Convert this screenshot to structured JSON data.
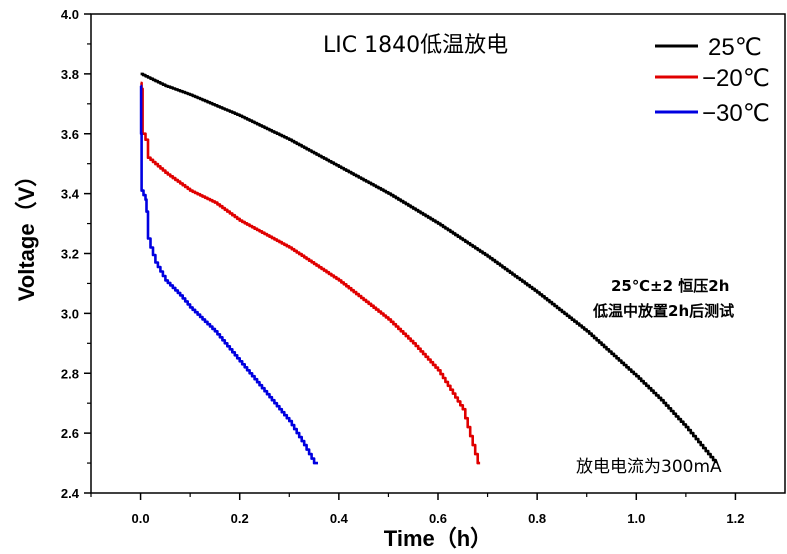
{
  "chart_data": {
    "type": "line",
    "title": "LIC 1840低温放电",
    "xlabel": "Time（h）",
    "ylabel": "Voltage（V）",
    "xlim": [
      -0.1,
      1.3
    ],
    "ylim": [
      2.4,
      4.0
    ],
    "x_ticks": [
      "0.0",
      "0.2",
      "0.4",
      "0.6",
      "0.8",
      "1.0",
      "1.2"
    ],
    "y_ticks": [
      "2.4",
      "2.6",
      "2.8",
      "3.0",
      "3.2",
      "3.4",
      "3.6",
      "3.8",
      "4.0"
    ],
    "legend_position": "top-right",
    "series": [
      {
        "name": "25℃",
        "color": "#000000",
        "points": [
          [
            0.0,
            3.8
          ],
          [
            0.05,
            3.76
          ],
          [
            0.1,
            3.73
          ],
          [
            0.2,
            3.66
          ],
          [
            0.3,
            3.58
          ],
          [
            0.4,
            3.49
          ],
          [
            0.5,
            3.4
          ],
          [
            0.6,
            3.3
          ],
          [
            0.7,
            3.19
          ],
          [
            0.8,
            3.07
          ],
          [
            0.9,
            2.94
          ],
          [
            1.0,
            2.79
          ],
          [
            1.05,
            2.71
          ],
          [
            1.1,
            2.62
          ],
          [
            1.13,
            2.56
          ],
          [
            1.16,
            2.5
          ]
        ]
      },
      {
        "name": "−20℃",
        "color": "#e00000",
        "points": [
          [
            0.0,
            3.77
          ],
          [
            0.002,
            3.75
          ],
          [
            0.004,
            3.6
          ],
          [
            0.01,
            3.58
          ],
          [
            0.015,
            3.52
          ],
          [
            0.05,
            3.47
          ],
          [
            0.1,
            3.41
          ],
          [
            0.15,
            3.37
          ],
          [
            0.2,
            3.31
          ],
          [
            0.3,
            3.22
          ],
          [
            0.4,
            3.11
          ],
          [
            0.5,
            2.98
          ],
          [
            0.55,
            2.9
          ],
          [
            0.6,
            2.81
          ],
          [
            0.65,
            2.68
          ],
          [
            0.68,
            2.5
          ]
        ]
      },
      {
        "name": "−30℃",
        "color": "#0000e0",
        "points": [
          [
            0.0,
            3.76
          ],
          [
            0.001,
            3.6
          ],
          [
            0.002,
            3.41
          ],
          [
            0.01,
            3.38
          ],
          [
            0.012,
            3.34
          ],
          [
            0.015,
            3.25
          ],
          [
            0.02,
            3.22
          ],
          [
            0.03,
            3.17
          ],
          [
            0.05,
            3.11
          ],
          [
            0.08,
            3.06
          ],
          [
            0.1,
            3.02
          ],
          [
            0.15,
            2.94
          ],
          [
            0.2,
            2.84
          ],
          [
            0.25,
            2.74
          ],
          [
            0.3,
            2.64
          ],
          [
            0.33,
            2.56
          ],
          [
            0.35,
            2.5
          ]
        ]
      }
    ],
    "annotations": {
      "condition_line1": "25℃±2 恒压2h",
      "condition_line2": "低温中放置2h后测试",
      "current": "放电电流为300mA"
    }
  }
}
